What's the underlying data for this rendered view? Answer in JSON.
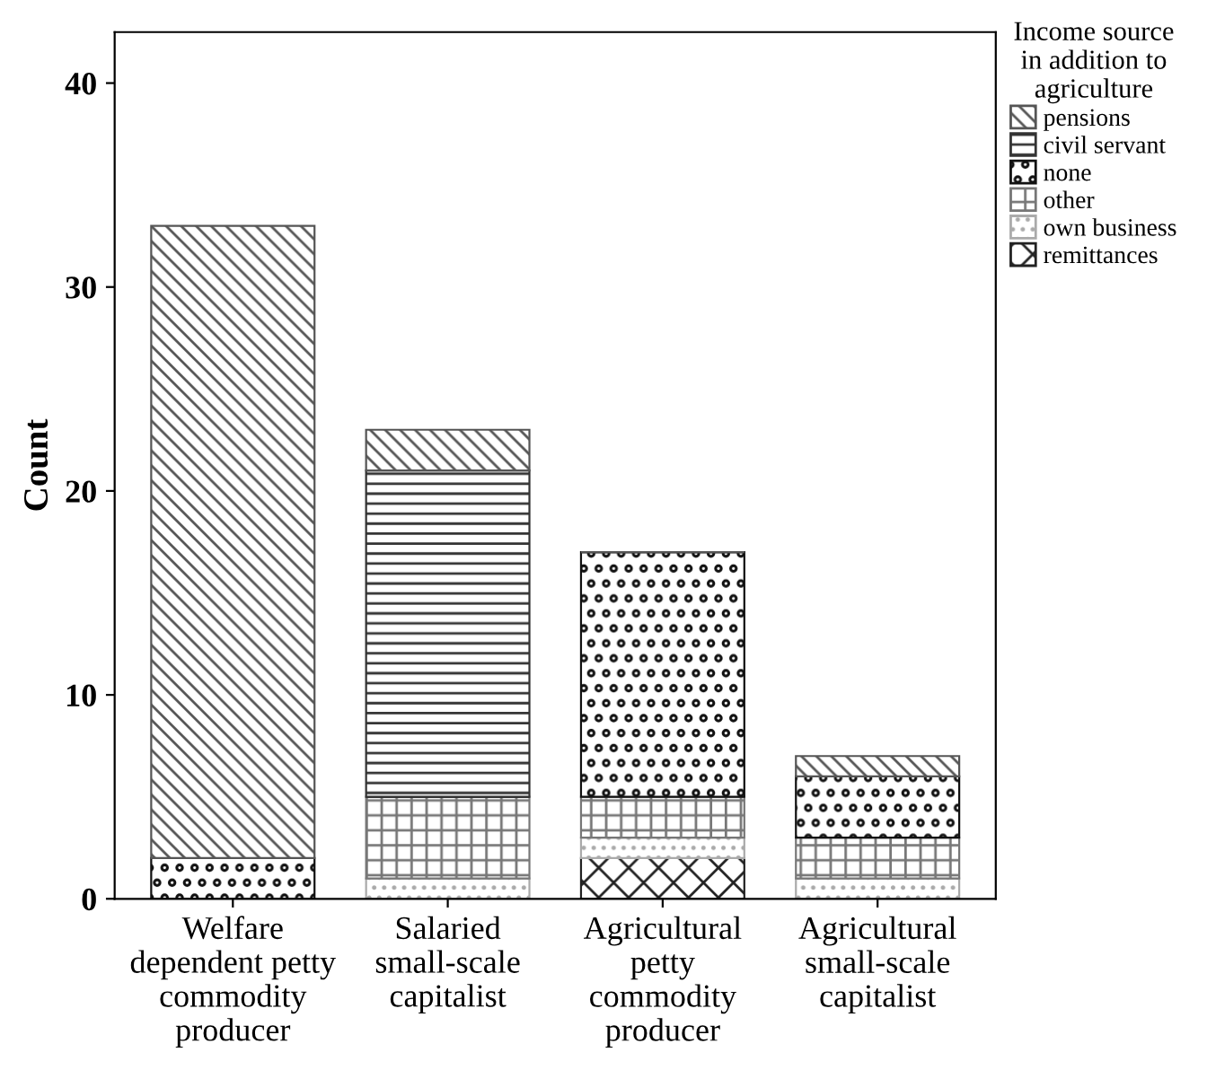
{
  "chart_data": {
    "type": "bar",
    "stacked": true,
    "ylabel": "Count",
    "legend_title": "Income source\nin addition to\nagriculture",
    "legend": "top right",
    "categories": [
      "Welfare\ndependent petty\ncommodity\nproducer",
      "Salaried\nsmall-scale\ncapitalist",
      "Agricultural\npetty\ncommodity\nproducer",
      "Agricultural\nsmall-scale\ncapitalist"
    ],
    "series": [
      {
        "name": "remittances",
        "color": "#222222",
        "values": [
          0,
          0,
          2,
          0
        ]
      },
      {
        "name": "own business",
        "color": "#aaaaaa",
        "values": [
          0,
          1,
          1,
          1
        ]
      },
      {
        "name": "other",
        "color": "#777777",
        "values": [
          0,
          4,
          2,
          2
        ]
      },
      {
        "name": "none",
        "color": "#111111",
        "values": [
          2,
          0,
          12,
          3
        ]
      },
      {
        "name": "civil servant",
        "color": "#333333",
        "values": [
          0,
          16,
          0,
          0
        ]
      },
      {
        "name": "pensions",
        "color": "#555555",
        "values": [
          31,
          2,
          0,
          1
        ]
      }
    ],
    "ylim": [
      0,
      42.5
    ],
    "yticks": [
      0,
      10,
      20,
      30,
      40
    ],
    "grid": false
  }
}
